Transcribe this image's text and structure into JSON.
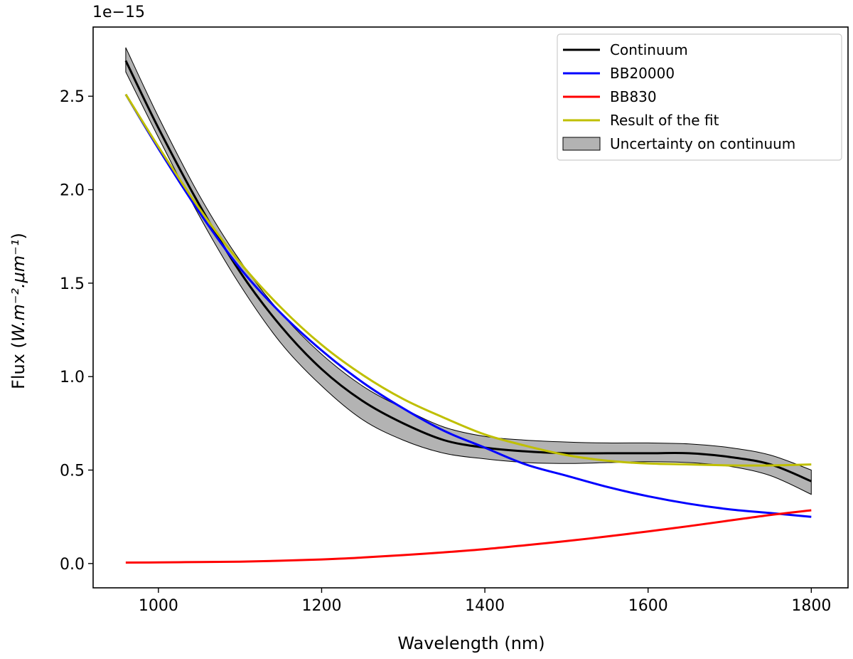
{
  "chart_data": {
    "type": "line",
    "title": "",
    "xlabel": "Wavelength (nm)",
    "ylabel_prefix": "Flux (",
    "ylabel_expr": "W.m⁻².μm⁻¹",
    "ylabel_suffix": ")",
    "y_offset_text": "1e−15",
    "xlim": [
      920,
      1845
    ],
    "ylim": [
      -0.13,
      2.87
    ],
    "x_ticks": [
      1000,
      1200,
      1400,
      1600,
      1800
    ],
    "y_ticks": [
      0.0,
      0.5,
      1.0,
      1.5,
      2.0,
      2.5
    ],
    "x_tick_labels": [
      "1000",
      "1200",
      "1400",
      "1600",
      "1800"
    ],
    "y_tick_labels": [
      "0.0",
      "0.5",
      "1.0",
      "1.5",
      "2.0",
      "2.5"
    ],
    "grid": false,
    "legend_position": "top-right",
    "x": [
      960,
      1000,
      1050,
      1100,
      1150,
      1200,
      1250,
      1300,
      1350,
      1400,
      1450,
      1500,
      1550,
      1600,
      1650,
      1700,
      1750,
      1800
    ],
    "series": [
      {
        "name": "Continuum",
        "color": "#000000",
        "values": [
          2.69,
          2.33,
          1.92,
          1.56,
          1.27,
          1.04,
          0.87,
          0.75,
          0.66,
          0.62,
          0.6,
          0.59,
          0.59,
          0.59,
          0.59,
          0.57,
          0.53,
          0.44
        ]
      },
      {
        "name": "BB20000",
        "color": "#0000ff",
        "values": [
          2.51,
          2.22,
          1.88,
          1.58,
          1.34,
          1.14,
          0.97,
          0.83,
          0.71,
          0.62,
          0.53,
          0.47,
          0.41,
          0.36,
          0.32,
          0.29,
          0.27,
          0.25
        ]
      },
      {
        "name": "BB830",
        "color": "#ff0000",
        "values": [
          0.005,
          0.006,
          0.008,
          0.01,
          0.015,
          0.022,
          0.032,
          0.045,
          0.06,
          0.077,
          0.098,
          0.12,
          0.145,
          0.172,
          0.2,
          0.23,
          0.26,
          0.285
        ]
      },
      {
        "name": "Result of the fit",
        "color": "#bfbf00",
        "values": [
          2.51,
          2.23,
          1.9,
          1.61,
          1.37,
          1.17,
          1.01,
          0.88,
          0.78,
          0.69,
          0.63,
          0.58,
          0.55,
          0.535,
          0.53,
          0.525,
          0.525,
          0.53
        ]
      }
    ],
    "uncertainty": {
      "name": "Uncertainty on continuum",
      "color": "#808080",
      "lower": [
        2.63,
        2.28,
        1.86,
        1.49,
        1.18,
        0.95,
        0.77,
        0.66,
        0.59,
        0.56,
        0.54,
        0.535,
        0.54,
        0.545,
        0.54,
        0.52,
        0.47,
        0.37
      ],
      "upper": [
        2.76,
        2.39,
        1.97,
        1.62,
        1.34,
        1.12,
        0.95,
        0.83,
        0.73,
        0.68,
        0.66,
        0.65,
        0.645,
        0.645,
        0.64,
        0.62,
        0.58,
        0.5
      ]
    }
  }
}
